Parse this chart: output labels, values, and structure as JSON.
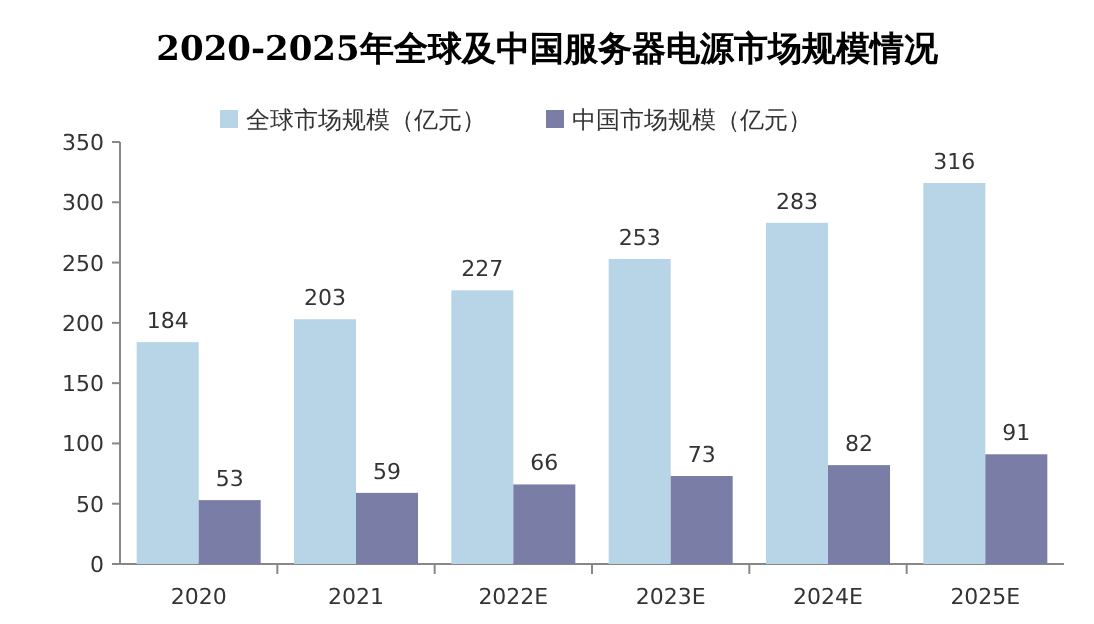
{
  "chart_data": {
    "type": "bar",
    "title": "2020-2025年全球及中国服务器电源市场规模情况",
    "categories": [
      "2020",
      "2021",
      "2022E",
      "2023E",
      "2024E",
      "2025E"
    ],
    "series": [
      {
        "name": "全球市场规模（亿元）",
        "color": "#b7d5e6",
        "values": [
          184,
          203,
          227,
          253,
          283,
          316
        ]
      },
      {
        "name": "中国市场规模（亿元）",
        "color": "#7a7ea6",
        "values": [
          53,
          59,
          66,
          73,
          82,
          91
        ]
      }
    ],
    "ylim": [
      0,
      350
    ],
    "yticks": [
      0,
      50,
      100,
      150,
      200,
      250,
      300,
      350
    ],
    "data_labels": true,
    "legend": "top",
    "grid": false
  }
}
